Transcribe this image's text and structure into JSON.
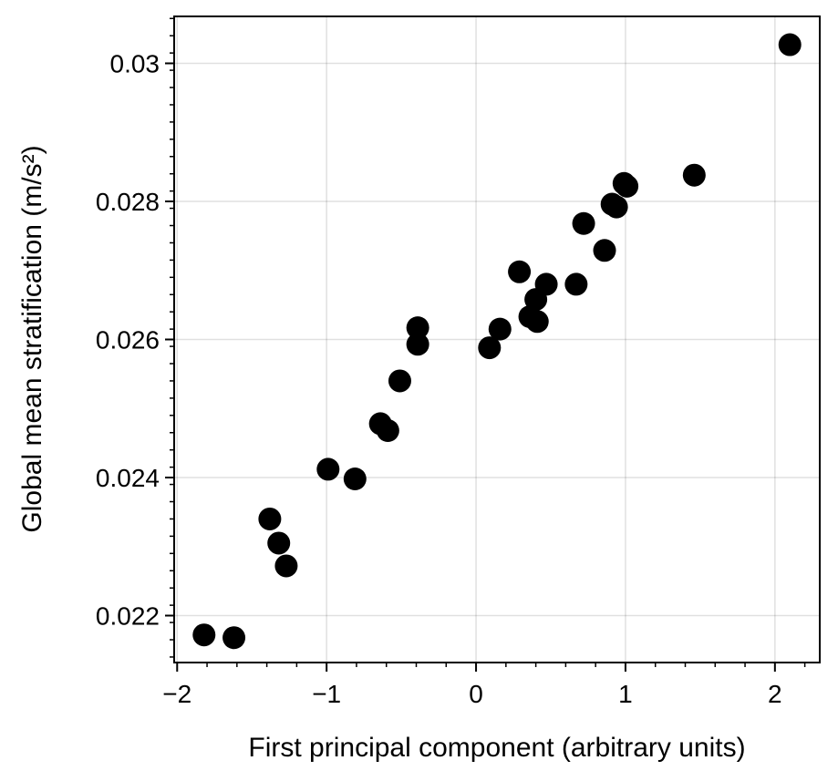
{
  "chart_data": {
    "type": "scatter",
    "title": "",
    "xlabel": "First principal component (arbitrary units)",
    "ylabel": "Global mean stratification (m/s²)",
    "xlim": [
      -2.02,
      2.3
    ],
    "ylim": [
      0.02132,
      0.03068
    ],
    "grid": true,
    "marker_color": "#000000",
    "x_ticks": [
      {
        "value": -2,
        "label": "−2"
      },
      {
        "value": -1,
        "label": "−1"
      },
      {
        "value": 0,
        "label": "0"
      },
      {
        "value": 1,
        "label": "1"
      },
      {
        "value": 2,
        "label": "2"
      }
    ],
    "y_ticks": [
      {
        "value": 0.022,
        "label": "0.022"
      },
      {
        "value": 0.024,
        "label": "0.024"
      },
      {
        "value": 0.026,
        "label": "0.026"
      },
      {
        "value": 0.028,
        "label": "0.028"
      },
      {
        "value": 0.03,
        "label": "0.03"
      }
    ],
    "points": [
      {
        "x": -1.82,
        "y": 0.02172
      },
      {
        "x": -1.62,
        "y": 0.02168
      },
      {
        "x": -1.38,
        "y": 0.0234
      },
      {
        "x": -1.32,
        "y": 0.02305
      },
      {
        "x": -1.27,
        "y": 0.02272
      },
      {
        "x": -0.99,
        "y": 0.02412
      },
      {
        "x": -0.81,
        "y": 0.02398
      },
      {
        "x": -0.64,
        "y": 0.02478
      },
      {
        "x": -0.59,
        "y": 0.02468
      },
      {
        "x": -0.51,
        "y": 0.0254
      },
      {
        "x": -0.39,
        "y": 0.02617
      },
      {
        "x": -0.39,
        "y": 0.02593
      },
      {
        "x": 0.09,
        "y": 0.02588
      },
      {
        "x": 0.16,
        "y": 0.02615
      },
      {
        "x": 0.29,
        "y": 0.02698
      },
      {
        "x": 0.36,
        "y": 0.02633
      },
      {
        "x": 0.4,
        "y": 0.02658
      },
      {
        "x": 0.41,
        "y": 0.02626
      },
      {
        "x": 0.47,
        "y": 0.0268
      },
      {
        "x": 0.67,
        "y": 0.0268
      },
      {
        "x": 0.72,
        "y": 0.02768
      },
      {
        "x": 0.86,
        "y": 0.02729
      },
      {
        "x": 0.91,
        "y": 0.02796
      },
      {
        "x": 0.94,
        "y": 0.02792
      },
      {
        "x": 0.99,
        "y": 0.02826
      },
      {
        "x": 1.01,
        "y": 0.02822
      },
      {
        "x": 1.46,
        "y": 0.02838
      },
      {
        "x": 2.1,
        "y": 0.03027
      }
    ]
  }
}
